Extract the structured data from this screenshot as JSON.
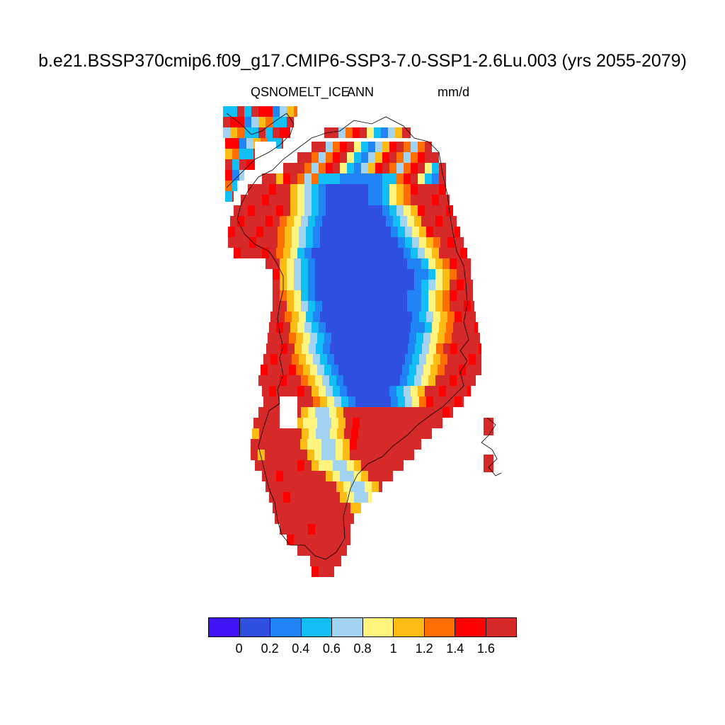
{
  "title": "b.e21.BSSP370cmip6.f09_g17.CMIP6-SSP3-7.0-SSP1-2.6Lu.003 (yrs 2055-2079)",
  "subtitle": {
    "variable": "QSNOMELT_ICE",
    "season": "ANN",
    "units": "mm/d"
  },
  "colorbar": {
    "colors": [
      "#3f13f5",
      "#2f4fe0",
      "#2184f5",
      "#12bff5",
      "#a2d4f2",
      "#fff47e",
      "#fdbb15",
      "#ff6e00",
      "#ff0000",
      "#d62a2a"
    ],
    "labels": [
      "0",
      "0.2",
      "0.4",
      "0.6",
      "0.8",
      "1",
      "1.2",
      "1.4",
      "1.6"
    ]
  },
  "map_data": {
    "type": "heatmap",
    "region_description_visible": false,
    "value_classes_mm_per_day": [
      "<0",
      "0-0.2",
      "0.2-0.4",
      "0.4-0.6",
      "0.6-0.8",
      "0.8-1",
      "1-1.2",
      "1.2-1.4",
      "1.4-1.6",
      ">1.6"
    ],
    "pattern": {
      "interior_class": "0-0.2",
      "inner_ring_class": "0.2-0.4",
      "transition_classes": [
        "0.4-0.6",
        "0.6-0.8",
        "0.8-1",
        "1-1.2"
      ],
      "margin_class": ">1.6"
    }
  }
}
